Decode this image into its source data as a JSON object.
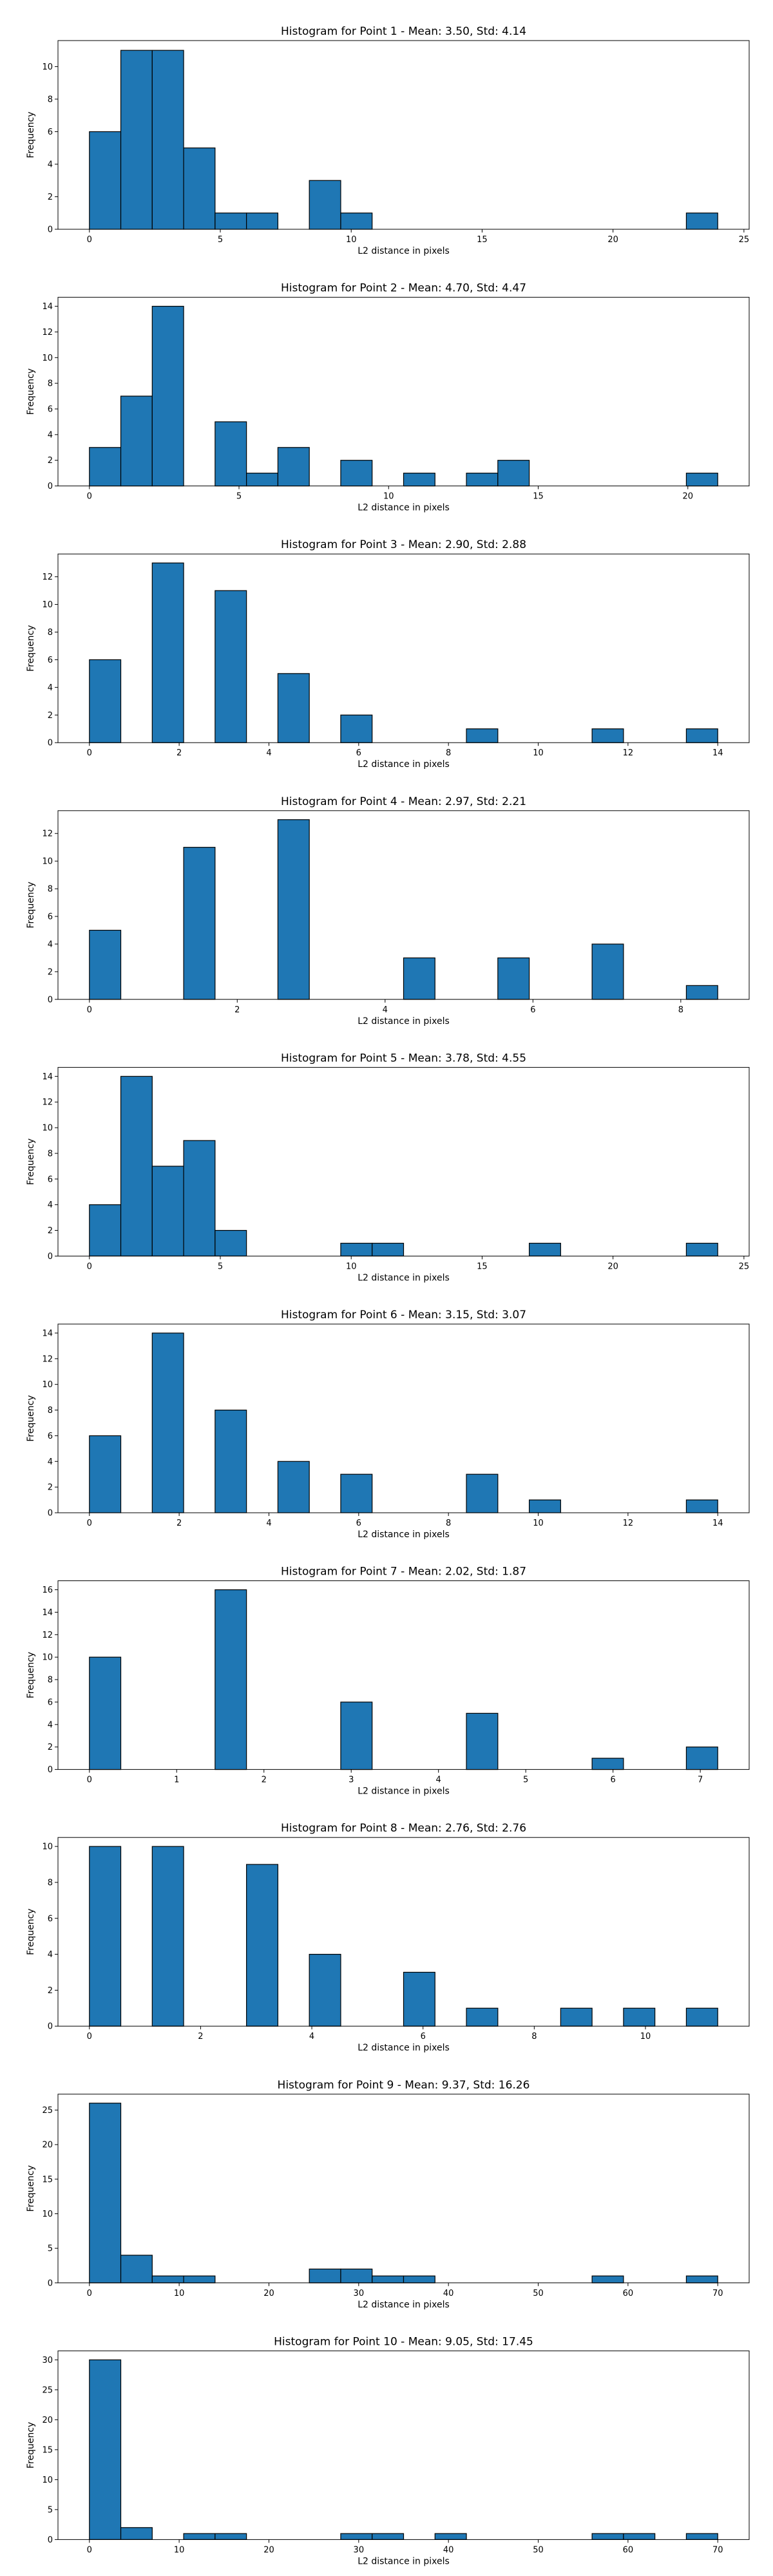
{
  "chart_data": [
    {
      "type": "bar",
      "title": "Histogram for Point 1 - Mean: 3.50, Std: 4.14",
      "xlabel": "L2 distance in pixels",
      "ylabel": "Frequency",
      "bar_color": "#1f77b4",
      "xlim": [
        -1.2,
        25.2
      ],
      "ylim": [
        0,
        11.6
      ],
      "xticks": [
        0,
        5,
        10,
        15,
        20,
        25
      ],
      "yticks": [
        0,
        2,
        4,
        6,
        8,
        10
      ],
      "bin_edges": [
        0,
        1.2,
        2.4,
        3.6,
        4.8,
        6.0,
        7.2,
        8.4,
        9.6,
        10.8,
        12.0,
        13.2,
        14.4,
        15.6,
        16.8,
        18.0,
        19.2,
        20.4,
        21.6,
        22.8,
        24.0
      ],
      "counts": [
        6,
        11,
        11,
        5,
        1,
        1,
        0,
        3,
        1,
        0,
        0,
        0,
        0,
        0,
        0,
        0,
        0,
        0,
        0,
        1
      ]
    },
    {
      "type": "bar",
      "title": "Histogram for Point 2 - Mean: 4.70, Std: 4.47",
      "xlabel": "L2 distance in pixels",
      "ylabel": "Frequency",
      "bar_color": "#1f77b4",
      "xlim": [
        -1.05,
        22.05
      ],
      "ylim": [
        0,
        14.7
      ],
      "xticks": [
        0,
        5,
        10,
        15,
        20
      ],
      "yticks": [
        0,
        2,
        4,
        6,
        8,
        10,
        12,
        14
      ],
      "bin_edges": [
        0,
        1.05,
        2.1,
        3.15,
        4.2,
        5.25,
        6.3,
        7.35,
        8.4,
        9.45,
        10.5,
        11.55,
        12.6,
        13.65,
        14.7,
        15.75,
        16.8,
        17.85,
        18.9,
        19.95,
        21.0
      ],
      "counts": [
        3,
        7,
        14,
        0,
        5,
        1,
        3,
        0,
        2,
        0,
        1,
        0,
        1,
        2,
        0,
        0,
        0,
        0,
        0,
        1
      ]
    },
    {
      "type": "bar",
      "title": "Histogram for Point 3 - Mean: 2.90, Std: 2.88",
      "xlabel": "L2 distance in pixels",
      "ylabel": "Frequency",
      "bar_color": "#1f77b4",
      "xlim": [
        -0.7,
        14.7
      ],
      "ylim": [
        0,
        13.65
      ],
      "xticks": [
        0,
        2,
        4,
        6,
        8,
        10,
        12,
        14
      ],
      "yticks": [
        0,
        2,
        4,
        6,
        8,
        10,
        12
      ],
      "bin_edges": [
        0,
        0.7,
        1.4,
        2.1,
        2.8,
        3.5,
        4.2,
        4.9,
        5.6,
        6.3,
        7.0,
        7.7,
        8.4,
        9.1,
        9.8,
        10.5,
        11.2,
        11.9,
        12.6,
        13.3,
        14.0
      ],
      "counts": [
        6,
        0,
        13,
        0,
        11,
        0,
        5,
        0,
        2,
        0,
        0,
        0,
        1,
        0,
        0,
        0,
        1,
        0,
        0,
        1
      ]
    },
    {
      "type": "bar",
      "title": "Histogram for Point 4 - Mean: 2.97, Std: 2.21",
      "xlabel": "L2 distance in pixels",
      "ylabel": "Frequency",
      "bar_color": "#1f77b4",
      "xlim": [
        -0.425,
        8.925
      ],
      "ylim": [
        0,
        13.65
      ],
      "xticks": [
        0,
        2,
        4,
        6,
        8
      ],
      "yticks": [
        0,
        2,
        4,
        6,
        8,
        10,
        12
      ],
      "bin_edges": [
        0,
        0.425,
        0.85,
        1.275,
        1.7,
        2.125,
        2.55,
        2.975,
        3.4,
        3.825,
        4.25,
        4.675,
        5.1,
        5.525,
        5.95,
        6.375,
        6.8,
        7.225,
        7.65,
        8.075,
        8.5
      ],
      "counts": [
        5,
        0,
        0,
        11,
        0,
        0,
        13,
        0,
        0,
        0,
        3,
        0,
        0,
        3,
        0,
        0,
        4,
        0,
        0,
        1
      ]
    },
    {
      "type": "bar",
      "title": "Histogram for Point 5 - Mean: 3.78, Std: 4.55",
      "xlabel": "L2 distance in pixels",
      "ylabel": "Frequency",
      "bar_color": "#1f77b4",
      "xlim": [
        -1.2,
        25.2
      ],
      "ylim": [
        0,
        14.7
      ],
      "xticks": [
        0,
        5,
        10,
        15,
        20,
        25
      ],
      "yticks": [
        0,
        2,
        4,
        6,
        8,
        10,
        12,
        14
      ],
      "bin_edges": [
        0,
        1.2,
        2.4,
        3.6,
        4.8,
        6.0,
        7.2,
        8.4,
        9.6,
        10.8,
        12.0,
        13.2,
        14.4,
        15.6,
        16.8,
        18.0,
        19.2,
        20.4,
        21.6,
        22.8,
        24.0
      ],
      "counts": [
        4,
        14,
        7,
        9,
        2,
        0,
        0,
        0,
        1,
        1,
        0,
        0,
        0,
        0,
        1,
        0,
        0,
        0,
        0,
        1
      ]
    },
    {
      "type": "bar",
      "title": "Histogram for Point 6 - Mean: 3.15, Std: 3.07",
      "xlabel": "L2 distance in pixels",
      "ylabel": "Frequency",
      "bar_color": "#1f77b4",
      "xlim": [
        -0.7,
        14.7
      ],
      "ylim": [
        0,
        14.7
      ],
      "xticks": [
        0,
        2,
        4,
        6,
        8,
        10,
        12,
        14
      ],
      "yticks": [
        0,
        2,
        4,
        6,
        8,
        10,
        12,
        14
      ],
      "bin_edges": [
        0,
        0.7,
        1.4,
        2.1,
        2.8,
        3.5,
        4.2,
        4.9,
        5.6,
        6.3,
        7.0,
        7.7,
        8.4,
        9.1,
        9.8,
        10.5,
        11.2,
        11.9,
        12.6,
        13.3,
        14.0
      ],
      "counts": [
        6,
        0,
        14,
        0,
        8,
        0,
        4,
        0,
        3,
        0,
        0,
        0,
        3,
        0,
        1,
        0,
        0,
        0,
        0,
        1
      ]
    },
    {
      "type": "bar",
      "title": "Histogram for Point 7 - Mean: 2.02, Std: 1.87",
      "xlabel": "L2 distance in pixels",
      "ylabel": "Frequency",
      "bar_color": "#1f77b4",
      "xlim": [
        -0.36,
        7.56
      ],
      "ylim": [
        0,
        16.8
      ],
      "xticks": [
        0,
        1,
        2,
        3,
        4,
        5,
        6,
        7
      ],
      "yticks": [
        0,
        2,
        4,
        6,
        8,
        10,
        12,
        14,
        16
      ],
      "bin_edges": [
        0,
        0.36,
        0.72,
        1.08,
        1.44,
        1.8,
        2.16,
        2.52,
        2.88,
        3.24,
        3.6,
        3.96,
        4.32,
        4.68,
        5.04,
        5.4,
        5.76,
        6.12,
        6.48,
        6.84,
        7.2
      ],
      "counts": [
        10,
        0,
        0,
        0,
        16,
        0,
        0,
        0,
        6,
        0,
        0,
        0,
        5,
        0,
        0,
        0,
        1,
        0,
        0,
        2
      ]
    },
    {
      "type": "bar",
      "title": "Histogram for Point 8 - Mean: 2.76, Std: 2.76",
      "xlabel": "L2 distance in pixels",
      "ylabel": "Frequency",
      "bar_color": "#1f77b4",
      "xlim": [
        -0.565,
        11.865
      ],
      "ylim": [
        0,
        10.5
      ],
      "xticks": [
        0,
        2,
        4,
        6,
        8,
        10
      ],
      "yticks": [
        0,
        2,
        4,
        6,
        8,
        10
      ],
      "bin_edges": [
        0,
        0.565,
        1.13,
        1.695,
        2.26,
        2.825,
        3.39,
        3.955,
        4.52,
        5.085,
        5.65,
        6.215,
        6.78,
        7.345,
        7.91,
        8.475,
        9.04,
        9.605,
        10.17,
        10.735,
        11.3
      ],
      "counts": [
        10,
        0,
        10,
        0,
        0,
        9,
        0,
        4,
        0,
        0,
        3,
        0,
        1,
        0,
        0,
        1,
        0,
        1,
        0,
        1
      ]
    },
    {
      "type": "bar",
      "title": "Histogram for Point 9 - Mean: 9.37, Std: 16.26",
      "xlabel": "L2 distance in pixels",
      "ylabel": "Frequency",
      "bar_color": "#1f77b4",
      "xlim": [
        -3.5,
        73.5
      ],
      "ylim": [
        0,
        27.3
      ],
      "xticks": [
        0,
        10,
        20,
        30,
        40,
        50,
        60,
        70
      ],
      "yticks": [
        0,
        5,
        10,
        15,
        20,
        25
      ],
      "bin_edges": [
        0,
        3.5,
        7.0,
        10.5,
        14.0,
        17.5,
        21.0,
        24.5,
        28.0,
        31.5,
        35.0,
        38.5,
        42.0,
        45.5,
        49.0,
        52.5,
        56.0,
        59.5,
        63.0,
        66.5,
        70.0
      ],
      "counts": [
        26,
        4,
        1,
        1,
        0,
        0,
        0,
        2,
        2,
        1,
        1,
        0,
        0,
        0,
        0,
        0,
        1,
        0,
        0,
        1
      ]
    },
    {
      "type": "bar",
      "title": "Histogram for Point 10 - Mean: 9.05, Std: 17.45",
      "xlabel": "L2 distance in pixels",
      "ylabel": "Frequency",
      "bar_color": "#1f77b4",
      "xlim": [
        -3.5,
        73.5
      ],
      "ylim": [
        0,
        31.5
      ],
      "xticks": [
        0,
        10,
        20,
        30,
        40,
        50,
        60,
        70
      ],
      "yticks": [
        0,
        5,
        10,
        15,
        20,
        25,
        30
      ],
      "bin_edges": [
        0,
        3.5,
        7.0,
        10.5,
        14.0,
        17.5,
        21.0,
        24.5,
        28.0,
        31.5,
        35.0,
        38.5,
        42.0,
        45.5,
        49.0,
        52.5,
        56.0,
        59.5,
        63.0,
        66.5,
        70.0
      ],
      "counts": [
        30,
        2,
        0,
        1,
        1,
        0,
        0,
        0,
        1,
        1,
        0,
        1,
        0,
        0,
        0,
        0,
        1,
        1,
        0,
        1
      ]
    }
  ]
}
